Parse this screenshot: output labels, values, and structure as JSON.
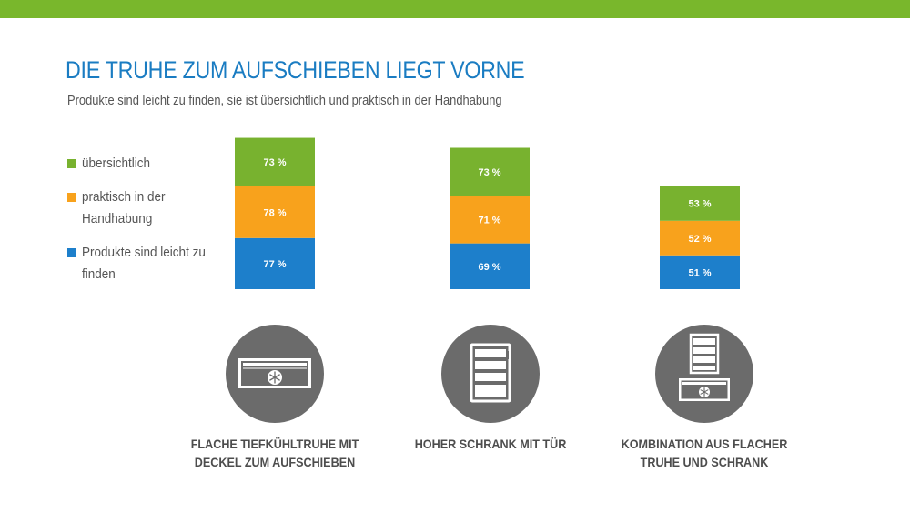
{
  "colors": {
    "top_bar": "#79b72c",
    "title": "#1a7cc2",
    "uebersichtlich": "#78b22f",
    "praktisch": "#f8a21c",
    "produkte": "#1d7fcb",
    "icon_circle": "#6b6b6b"
  },
  "header": {
    "title": "DIE TRUHE ZUM AUFSCHIEBEN LIEGT VORNE",
    "subtitle": "Produkte sind leicht zu finden, sie ist übersichtlich und praktisch in der Handhabung"
  },
  "legend": {
    "items": [
      {
        "label": "übersichtlich",
        "color": "#78b22f"
      },
      {
        "label": "praktisch in der Handhabung",
        "color": "#f8a21c"
      },
      {
        "label": "Produkte sind leicht zu finden",
        "color": "#1d7fcb"
      }
    ]
  },
  "categories": [
    {
      "label": "FLACHE TIEFKÜHLTRUHE MIT\nDECKEL ZUM AUFSCHIEBEN",
      "icon": "chest-freezer-icon"
    },
    {
      "label": "HOHER SCHRANK MIT TÜR",
      "icon": "upright-freezer-icon"
    },
    {
      "label": "KOMBINATION AUS FLACHER\nTRUHE UND SCHRANK",
      "icon": "combination-freezer-icon"
    }
  ],
  "chart_data": {
    "type": "bar",
    "stacked": true,
    "title": "DIE TRUHE ZUM AUFSCHIEBEN LIEGT VORNE",
    "subtitle": "Produkte sind leicht zu finden, sie ist übersichtlich und praktisch in der Handhabung",
    "categories": [
      "FLACHE TIEFKÜHLTRUHE MIT DECKEL ZUM AUFSCHIEBEN",
      "HOHER SCHRANK MIT TÜR",
      "KOMBINATION AUS FLACHER TRUHE UND SCHRANK"
    ],
    "series": [
      {
        "name": "Produkte sind leicht zu finden",
        "values": [
          77,
          69,
          51
        ],
        "labels": [
          "77 %",
          "69 %",
          "51 %"
        ],
        "color": "#1d7fcb"
      },
      {
        "name": "praktisch in der Handhabung",
        "values": [
          78,
          71,
          52
        ],
        "labels": [
          "78 %",
          "71 %",
          "52 %"
        ],
        "color": "#f8a21c"
      },
      {
        "name": "übersichtlich",
        "values": [
          73,
          73,
          53
        ],
        "labels": [
          "73 %",
          "73 %",
          "53 %"
        ],
        "color": "#78b22f"
      }
    ],
    "legend_position": "left",
    "grid": false,
    "unit": "%"
  }
}
